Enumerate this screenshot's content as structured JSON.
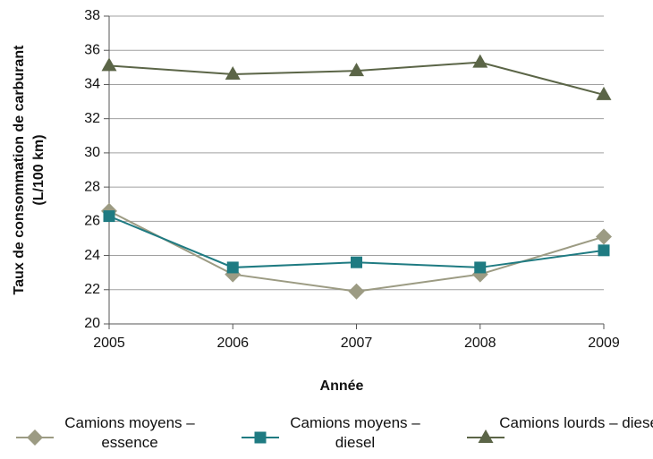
{
  "chart_data": {
    "type": "line",
    "ylabel": [
      "Taux de consommation de carburant",
      "(L/100 km)"
    ],
    "xlabel": "Année",
    "x": [
      2005,
      2006,
      2007,
      2008,
      2009
    ],
    "xlim": [
      2005,
      2009
    ],
    "xticks": [
      2005,
      2006,
      2007,
      2008,
      2009
    ],
    "ylim": [
      20,
      38
    ],
    "yticks": [
      20,
      22,
      24,
      26,
      28,
      30,
      32,
      34,
      36,
      38
    ],
    "grid": true,
    "legend": "bottom",
    "series": [
      {
        "name": "Camions moyens – essence",
        "color": "#9c9b83",
        "marker": "diamond",
        "values": [
          26.6,
          22.9,
          21.9,
          22.9,
          25.1
        ]
      },
      {
        "name": "Camions moyens – diesel",
        "color": "#1f7b82",
        "marker": "square",
        "values": [
          26.3,
          23.3,
          23.6,
          23.3,
          24.3
        ]
      },
      {
        "name": "Camions lourds – diesel",
        "color": "#5b6547",
        "marker": "triangle",
        "values": [
          35.1,
          34.6,
          34.8,
          35.3,
          33.4
        ]
      }
    ]
  }
}
